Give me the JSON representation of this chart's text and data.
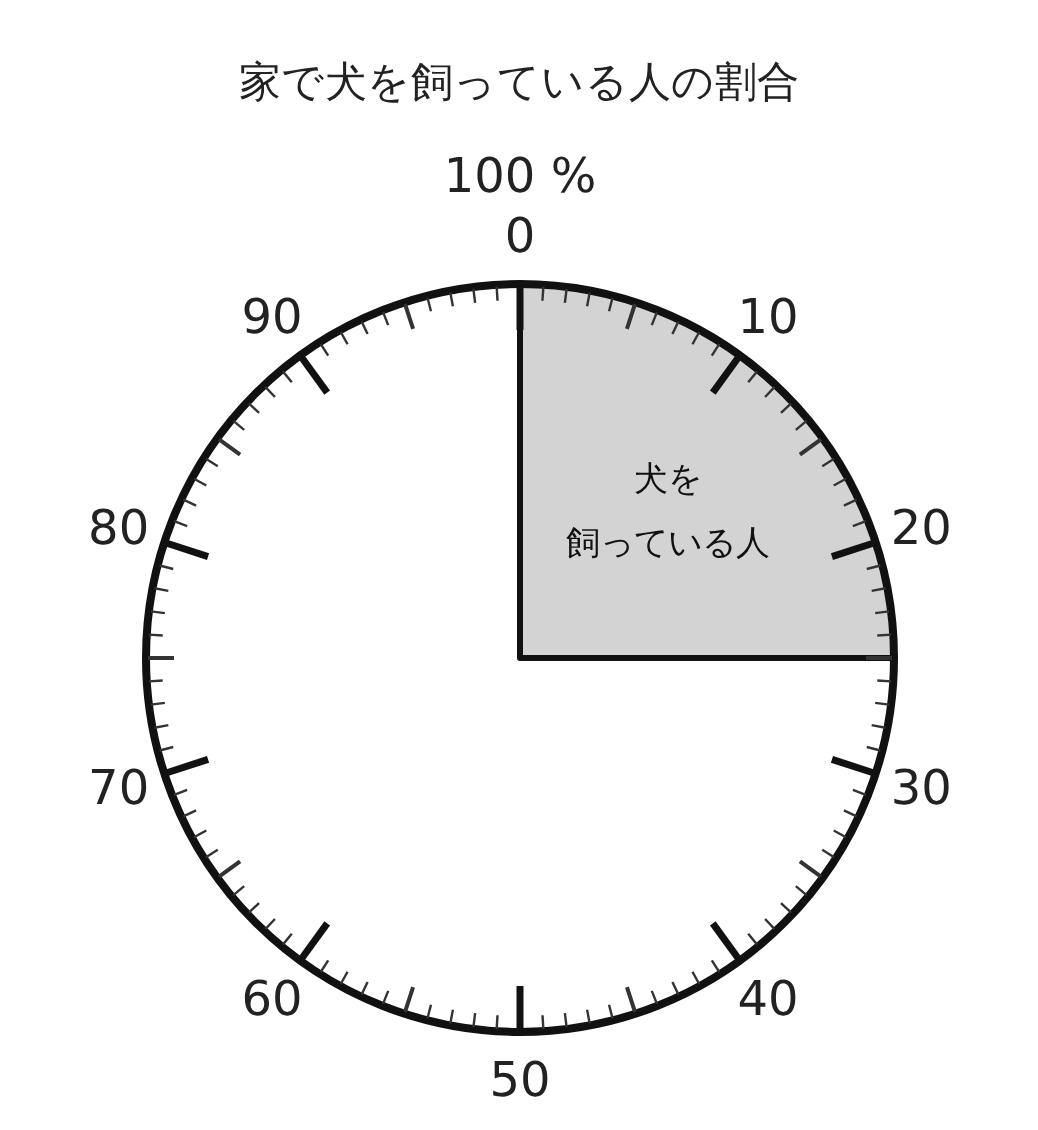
{
  "chart_data": {
    "type": "pie",
    "title": "家で犬を飼っている人の割合",
    "categories": [
      "犬を飼っている人",
      null
    ],
    "values": [
      25,
      75
    ],
    "colors": [
      "#d3d3d3",
      "#ffffff"
    ],
    "annotations": [
      "100 %",
      "0",
      "10",
      "20",
      "30",
      "40",
      "50",
      "60",
      "70",
      "80",
      "90"
    ]
  }
}
